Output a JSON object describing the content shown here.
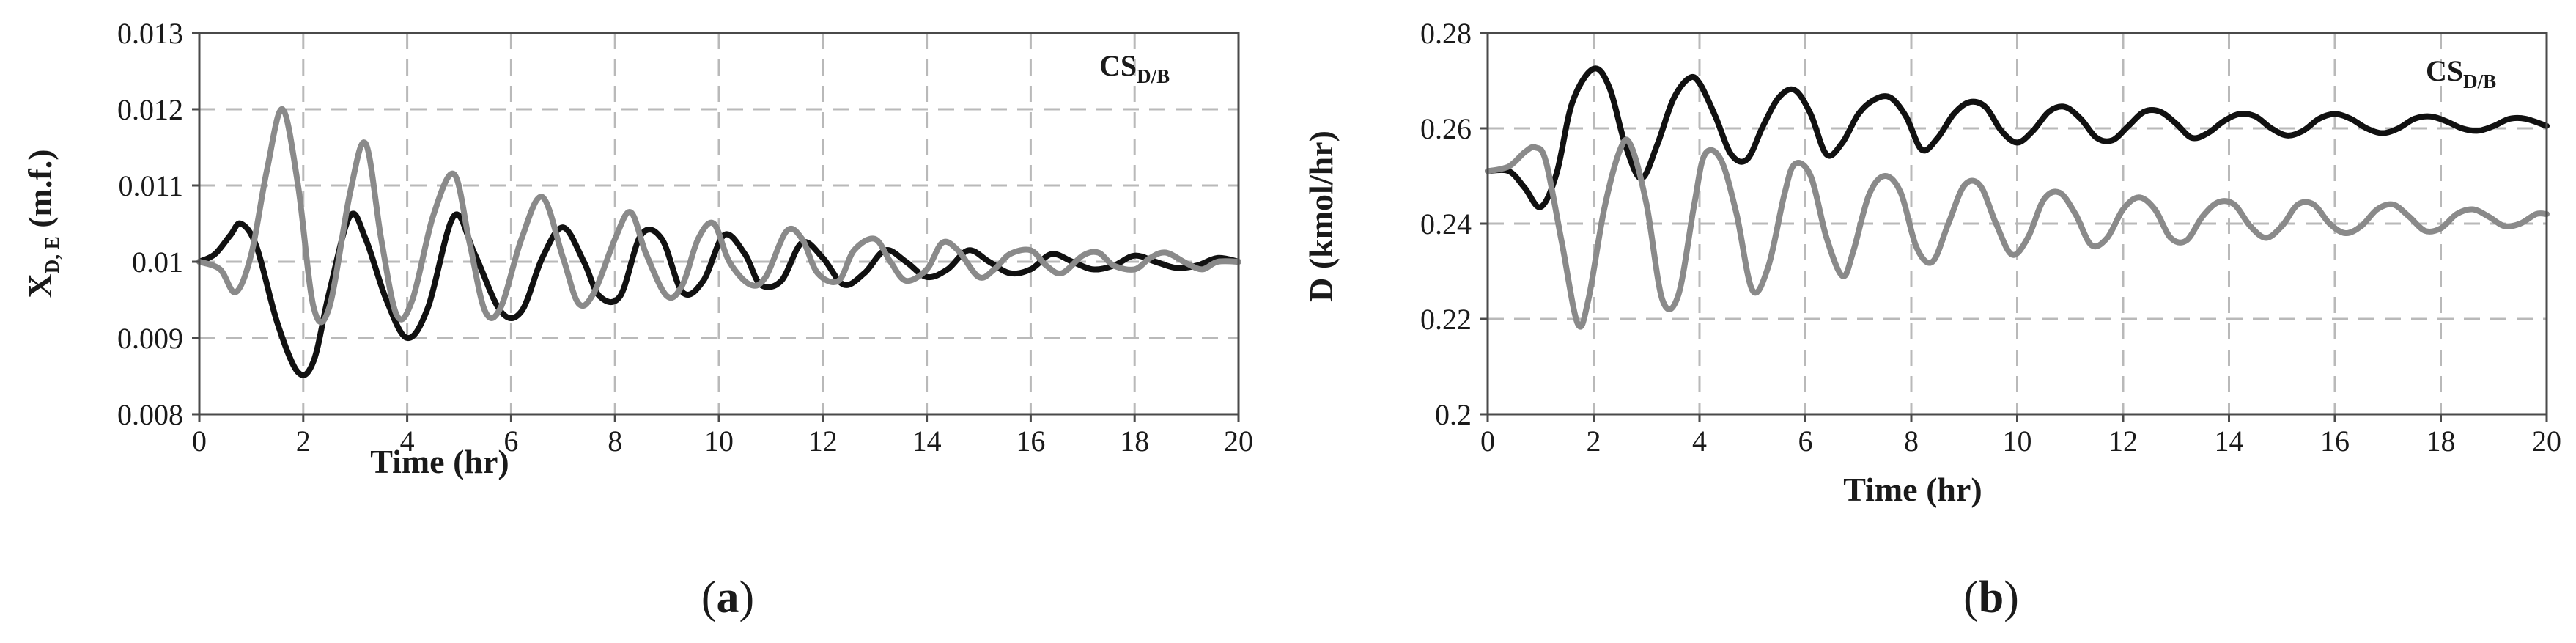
{
  "chart_data": [
    {
      "type": "line",
      "panel_label": "(a)",
      "panel_letter": "a",
      "tag": "CS",
      "tag_sub": "D/B",
      "xlabel": "Time (hr)",
      "ylabel": "X",
      "ylabel_sub": "D, E",
      "ylabel_unit": " (m.f.)",
      "xlim": [
        0,
        20
      ],
      "ylim": [
        0.008,
        0.013
      ],
      "xticks": [
        0,
        2,
        4,
        6,
        8,
        10,
        12,
        14,
        16,
        18,
        20
      ],
      "xtick_labels": [
        "0",
        "2",
        "4",
        "6",
        "8",
        "10",
        "12",
        "14",
        "16",
        "18",
        "20"
      ],
      "yticks": [
        0.008,
        0.009,
        0.01,
        0.011,
        0.012,
        0.013
      ],
      "ytick_labels": [
        "0.008",
        "0.009",
        "0.01",
        "0.011",
        "0.012",
        "0.013"
      ],
      "grid": true,
      "series": [
        {
          "color": "#111111",
          "x": [
            0,
            0.3,
            0.6,
            0.8,
            1.1,
            1.5,
            1.9,
            2.2,
            2.5,
            2.9,
            3.2,
            3.6,
            4.0,
            4.4,
            4.9,
            5.3,
            5.8,
            6.2,
            6.6,
            7.0,
            7.4,
            7.7,
            8.1,
            8.5,
            8.9,
            9.3,
            9.7,
            10.1,
            10.5,
            10.8,
            11.2,
            11.6,
            12.0,
            12.4,
            12.8,
            13.2,
            13.6,
            14.0,
            14.4,
            14.8,
            15.2,
            15.6,
            16.0,
            16.4,
            16.8,
            17.2,
            17.6,
            18.0,
            18.4,
            18.8,
            19.2,
            19.6,
            20.0
          ],
          "y": [
            0.01,
            0.0101,
            0.01035,
            0.0105,
            0.0102,
            0.0092,
            0.00855,
            0.0087,
            0.0096,
            0.0106,
            0.0103,
            0.0095,
            0.009,
            0.0094,
            0.0106,
            0.0101,
            0.00935,
            0.00935,
            0.01005,
            0.01045,
            0.01,
            0.00955,
            0.00955,
            0.01035,
            0.0103,
            0.0096,
            0.00975,
            0.01035,
            0.0101,
            0.0097,
            0.00975,
            0.01025,
            0.01005,
            0.0097,
            0.00985,
            0.01015,
            0.01,
            0.0098,
            0.0099,
            0.01015,
            0.01,
            0.00985,
            0.0099,
            0.0101,
            0.01,
            0.0099,
            0.00995,
            0.01008,
            0.01,
            0.00992,
            0.00995,
            0.01005,
            0.01
          ]
        },
        {
          "color": "#8a8a8a",
          "x": [
            0,
            0.4,
            0.7,
            1.0,
            1.3,
            1.6,
            1.9,
            2.2,
            2.5,
            2.9,
            3.2,
            3.5,
            3.8,
            4.1,
            4.5,
            4.9,
            5.2,
            5.5,
            5.8,
            6.2,
            6.6,
            7.0,
            7.3,
            7.6,
            8.0,
            8.3,
            8.6,
            9.0,
            9.3,
            9.6,
            9.9,
            10.2,
            10.6,
            10.9,
            11.3,
            11.6,
            11.9,
            12.3,
            12.6,
            13.0,
            13.3,
            13.6,
            14.0,
            14.3,
            14.6,
            15.0,
            15.3,
            15.6,
            16.0,
            16.3,
            16.6,
            17.0,
            17.3,
            17.6,
            18.0,
            18.3,
            18.6,
            19.0,
            19.3,
            19.6,
            20.0
          ],
          "y": [
            0.01,
            0.0099,
            0.0096,
            0.0101,
            0.0112,
            0.012,
            0.011,
            0.0094,
            0.0094,
            0.0109,
            0.01155,
            0.0103,
            0.0093,
            0.0095,
            0.0106,
            0.01115,
            0.01025,
            0.00935,
            0.0094,
            0.0103,
            0.01085,
            0.01005,
            0.00945,
            0.0096,
            0.0103,
            0.01065,
            0.0101,
            0.00955,
            0.0097,
            0.0103,
            0.0105,
            0.01,
            0.0097,
            0.0098,
            0.0104,
            0.0103,
            0.00985,
            0.00975,
            0.01015,
            0.0103,
            0.01,
            0.00975,
            0.0099,
            0.01025,
            0.01015,
            0.0098,
            0.0099,
            0.0101,
            0.01015,
            0.00995,
            0.00985,
            0.01008,
            0.01012,
            0.00995,
            0.0099,
            0.01005,
            0.01012,
            0.00998,
            0.0099,
            0.01,
            0.01
          ]
        }
      ]
    },
    {
      "type": "line",
      "panel_label": "(b)",
      "panel_letter": "b",
      "tag": "CS",
      "tag_sub": "D/B",
      "xlabel": "Time (hr)",
      "ylabel": "D (kmol/hr)",
      "ylabel_sub": "",
      "ylabel_unit": "",
      "xlim": [
        0,
        20
      ],
      "ylim": [
        0.2,
        0.28
      ],
      "xticks": [
        0,
        2,
        4,
        6,
        8,
        10,
        12,
        14,
        16,
        18,
        20
      ],
      "xtick_labels": [
        "0",
        "2",
        "4",
        "6",
        "8",
        "10",
        "12",
        "14",
        "16",
        "18",
        "20"
      ],
      "yticks": [
        0.2,
        0.22,
        0.24,
        0.26,
        0.28
      ],
      "ytick_labels": [
        "0.2",
        "0.22",
        "0.24",
        "0.26",
        "0.28"
      ],
      "grid": true,
      "series": [
        {
          "color": "#111111",
          "x": [
            0,
            0.4,
            0.7,
            1.0,
            1.3,
            1.6,
            2.0,
            2.3,
            2.6,
            2.9,
            3.2,
            3.5,
            3.8,
            4.0,
            4.3,
            4.6,
            4.9,
            5.2,
            5.5,
            5.8,
            6.1,
            6.4,
            6.7,
            7.0,
            7.3,
            7.6,
            7.9,
            8.2,
            8.5,
            8.8,
            9.1,
            9.4,
            9.7,
            10.0,
            10.3,
            10.6,
            10.9,
            11.2,
            11.5,
            11.8,
            12.1,
            12.4,
            12.7,
            13.0,
            13.3,
            13.6,
            13.9,
            14.2,
            14.5,
            14.8,
            15.1,
            15.4,
            15.7,
            16.0,
            16.3,
            16.6,
            16.9,
            17.2,
            17.5,
            17.8,
            18.1,
            18.4,
            18.7,
            19.0,
            19.3,
            19.6,
            20.0
          ],
          "y": [
            0.251,
            0.251,
            0.2475,
            0.2435,
            0.2505,
            0.2655,
            0.2725,
            0.2685,
            0.2565,
            0.2495,
            0.2565,
            0.266,
            0.2705,
            0.2695,
            0.2625,
            0.2545,
            0.2535,
            0.2605,
            0.2665,
            0.268,
            0.263,
            0.2545,
            0.257,
            0.263,
            0.266,
            0.2665,
            0.2625,
            0.2555,
            0.258,
            0.263,
            0.2655,
            0.2645,
            0.2595,
            0.257,
            0.2595,
            0.2635,
            0.2645,
            0.262,
            0.258,
            0.2575,
            0.2605,
            0.2635,
            0.2635,
            0.261,
            0.258,
            0.259,
            0.2615,
            0.263,
            0.2625,
            0.26,
            0.2585,
            0.2595,
            0.262,
            0.263,
            0.262,
            0.26,
            0.259,
            0.26,
            0.262,
            0.2625,
            0.2615,
            0.26,
            0.2595,
            0.2605,
            0.262,
            0.262,
            0.2605
          ]
        },
        {
          "color": "#8a8a8a",
          "x": [
            0,
            0.4,
            0.7,
            0.9,
            1.1,
            1.4,
            1.7,
            1.9,
            2.2,
            2.5,
            2.7,
            3.0,
            3.3,
            3.6,
            3.9,
            4.1,
            4.4,
            4.7,
            5.0,
            5.3,
            5.6,
            5.8,
            6.1,
            6.4,
            6.7,
            6.9,
            7.2,
            7.5,
            7.8,
            8.1,
            8.4,
            8.7,
            9.0,
            9.3,
            9.6,
            9.9,
            10.2,
            10.5,
            10.8,
            11.1,
            11.4,
            11.7,
            12.0,
            12.3,
            12.6,
            12.9,
            13.2,
            13.5,
            13.8,
            14.1,
            14.4,
            14.7,
            15.0,
            15.3,
            15.6,
            15.9,
            16.2,
            16.5,
            16.8,
            17.1,
            17.4,
            17.7,
            18.0,
            18.3,
            18.6,
            18.9,
            19.2,
            19.5,
            19.8,
            20.0
          ],
          "y": [
            0.251,
            0.252,
            0.255,
            0.256,
            0.253,
            0.236,
            0.219,
            0.224,
            0.243,
            0.2555,
            0.2565,
            0.244,
            0.224,
            0.225,
            0.244,
            0.2545,
            0.2535,
            0.242,
            0.226,
            0.231,
            0.246,
            0.2525,
            0.25,
            0.237,
            0.229,
            0.234,
            0.246,
            0.25,
            0.2465,
            0.235,
            0.232,
            0.24,
            0.248,
            0.248,
            0.24,
            0.2335,
            0.237,
            0.245,
            0.2465,
            0.242,
            0.2355,
            0.237,
            0.243,
            0.2455,
            0.243,
            0.237,
            0.2365,
            0.2415,
            0.2445,
            0.244,
            0.2395,
            0.237,
            0.2395,
            0.244,
            0.244,
            0.24,
            0.238,
            0.2395,
            0.243,
            0.244,
            0.2415,
            0.2385,
            0.239,
            0.242,
            0.243,
            0.2415,
            0.2395,
            0.24,
            0.242,
            0.242
          ]
        }
      ]
    }
  ]
}
